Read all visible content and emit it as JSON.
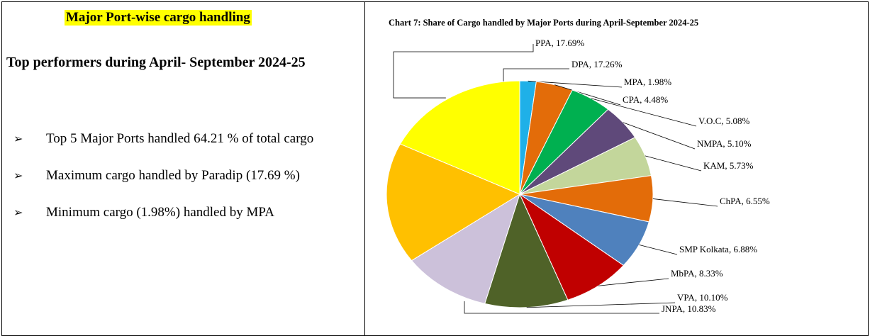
{
  "heading": "Major Port-wise cargo handling",
  "subheading": "Top performers during April- September 2024-25",
  "bullets": [
    "Top 5 Major Ports handled 64.21 % of total cargo",
    "Maximum cargo handled by Paradip (17.69 %)",
    "Minimum cargo (1.98%) handled by MPA"
  ],
  "chart_data": {
    "type": "pie",
    "title": "Chart 7: Share of Cargo handled by Major Ports during April-September 2024-25",
    "labels": [
      "MPA, 1.98%",
      "CPA, 4.48%",
      "V.O.C, 5.08%",
      "NMPA, 5.10%",
      "KAM, 5.73%",
      "ChPA, 6.55%",
      "SMP Kolkata, 6.88%",
      "MbPA, 8.33%",
      "VPA, 10.10%",
      "JNPA, 10.83%",
      "DPA, 17.26%",
      "PPA, 17.69%"
    ],
    "values": [
      1.98,
      4.48,
      5.08,
      5.1,
      5.73,
      6.55,
      6.88,
      8.33,
      10.1,
      10.83,
      17.26,
      17.69
    ],
    "colors": [
      "#1fb0e8",
      "#e36c09",
      "#00b050",
      "#5f497a",
      "#c3d69b",
      "#e36c09",
      "#4f81bd",
      "#c00000",
      "#4f6228",
      "#ccc1da",
      "#ffc000",
      "#ffff00"
    ]
  }
}
